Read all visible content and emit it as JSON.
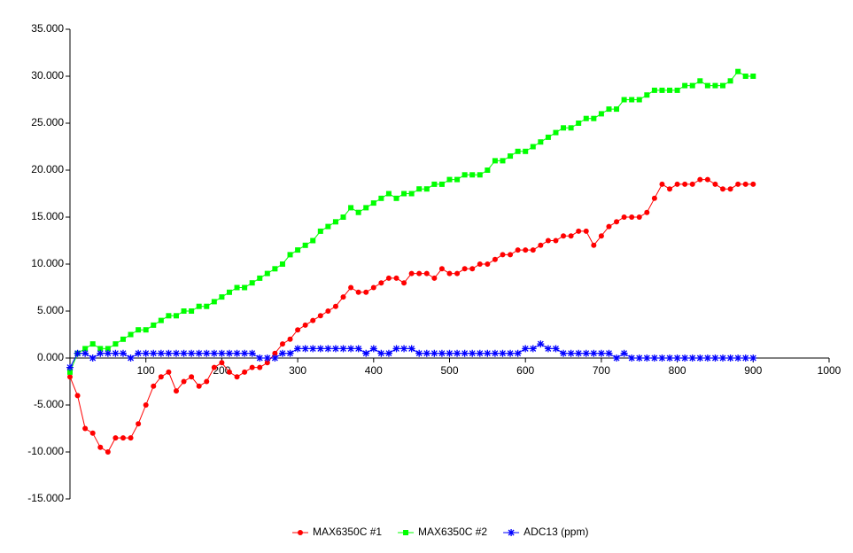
{
  "chart_data": {
    "type": "line",
    "x": [
      0,
      10,
      20,
      30,
      40,
      50,
      60,
      70,
      80,
      90,
      100,
      110,
      120,
      130,
      140,
      150,
      160,
      170,
      180,
      190,
      200,
      210,
      220,
      230,
      240,
      250,
      260,
      270,
      280,
      290,
      300,
      310,
      320,
      330,
      340,
      350,
      360,
      370,
      380,
      390,
      400,
      410,
      420,
      430,
      440,
      450,
      460,
      470,
      480,
      490,
      500,
      510,
      520,
      530,
      540,
      550,
      560,
      570,
      580,
      590,
      600,
      610,
      620,
      630,
      640,
      650,
      660,
      670,
      680,
      690,
      700,
      710,
      720,
      730,
      740,
      750,
      760,
      770,
      780,
      790,
      800,
      810,
      820,
      830,
      840,
      850,
      860,
      870,
      880,
      890,
      900
    ],
    "series": [
      {
        "name": "MAX6350C #1",
        "color": "#ff0000",
        "marker": "circle",
        "values": [
          -2,
          -4,
          -7.5,
          -8,
          -9.5,
          -10,
          -8.5,
          -8.5,
          -8.5,
          -7,
          -5,
          -3,
          -2,
          -1.5,
          -3.5,
          -2.5,
          -2,
          -3,
          -2.5,
          -1,
          -0.5,
          -1.5,
          -2,
          -1.5,
          -1,
          -1,
          -0.5,
          0.5,
          1.5,
          2,
          3,
          3.5,
          4,
          4.5,
          5,
          5.5,
          6.5,
          7.5,
          7,
          7,
          7.5,
          8,
          8.5,
          8.5,
          8,
          9,
          9,
          9,
          8.5,
          9.5,
          9,
          9,
          9.5,
          9.5,
          10,
          10,
          10.5,
          11,
          11,
          11.5,
          11.5,
          11.5,
          12,
          12.5,
          12.5,
          13,
          13,
          13.5,
          13.5,
          12,
          13,
          14,
          14.5,
          15,
          15,
          15,
          15.5,
          17,
          18.5,
          18,
          18.5,
          18.5,
          18.5,
          19,
          19,
          18.5,
          18,
          18,
          18.5,
          18.5,
          18.5
        ]
      },
      {
        "name": "MAX6350C #2",
        "color": "#00ff00",
        "marker": "square",
        "values": [
          -1.5,
          0.5,
          1,
          1.5,
          1,
          1,
          1.5,
          2,
          2.5,
          3,
          3,
          3.5,
          4,
          4.5,
          4.5,
          5,
          5,
          5.5,
          5.5,
          6,
          6.5,
          7,
          7.5,
          7.5,
          8,
          8.5,
          9,
          9.5,
          10,
          11,
          11.5,
          12,
          12.5,
          13.5,
          14,
          14.5,
          15,
          16,
          15.5,
          16,
          16.5,
          17,
          17.5,
          17,
          17.5,
          17.5,
          18,
          18,
          18.5,
          18.5,
          19,
          19,
          19.5,
          19.5,
          19.5,
          20,
          21,
          21,
          21.5,
          22,
          22,
          22.5,
          23,
          23.5,
          24,
          24.5,
          24.5,
          25,
          25.5,
          25.5,
          26,
          26.5,
          26.5,
          27.5,
          27.5,
          27.5,
          28,
          28.5,
          28.5,
          28.5,
          28.5,
          29,
          29,
          29.5,
          29,
          29,
          29,
          29.5,
          30.5,
          30,
          30
        ]
      },
      {
        "name": "ADC13 (ppm)",
        "color": "#0000ff",
        "marker": "star",
        "values": [
          -1,
          0.5,
          0.5,
          0,
          0.5,
          0.5,
          0.5,
          0.5,
          0,
          0.5,
          0.5,
          0.5,
          0.5,
          0.5,
          0.5,
          0.5,
          0.5,
          0.5,
          0.5,
          0.5,
          0.5,
          0.5,
          0.5,
          0.5,
          0.5,
          0,
          0,
          0,
          0.5,
          0.5,
          1,
          1,
          1,
          1,
          1,
          1,
          1,
          1,
          1,
          0.5,
          1,
          0.5,
          0.5,
          1,
          1,
          1,
          0.5,
          0.5,
          0.5,
          0.5,
          0.5,
          0.5,
          0.5,
          0.5,
          0.5,
          0.5,
          0.5,
          0.5,
          0.5,
          0.5,
          1,
          1,
          1.5,
          1,
          1,
          0.5,
          0.5,
          0.5,
          0.5,
          0.5,
          0.5,
          0.5,
          0,
          0.5,
          0,
          0,
          0,
          0,
          0,
          0,
          0,
          0,
          0,
          0,
          0,
          0,
          0,
          0,
          0,
          0,
          0
        ]
      }
    ],
    "xlim": [
      0,
      1000
    ],
    "xticks": [
      0,
      100,
      200,
      300,
      400,
      500,
      600,
      700,
      800,
      900,
      1000
    ],
    "ylim": [
      -15,
      35
    ],
    "yticks": [
      {
        "value": -15,
        "label": "-15.000"
      },
      {
        "value": -10,
        "label": "-10.000"
      },
      {
        "value": -5,
        "label": "-5.000"
      },
      {
        "value": 0,
        "label": "0.000"
      },
      {
        "value": 5,
        "label": "5.000"
      },
      {
        "value": 10,
        "label": "10.000"
      },
      {
        "value": 15,
        "label": "15.000"
      },
      {
        "value": 20,
        "label": "20.000"
      },
      {
        "value": 25,
        "label": "25.000"
      },
      {
        "value": 30,
        "label": "30.000"
      },
      {
        "value": 35,
        "label": "35.000"
      }
    ],
    "legend": "bottom"
  }
}
